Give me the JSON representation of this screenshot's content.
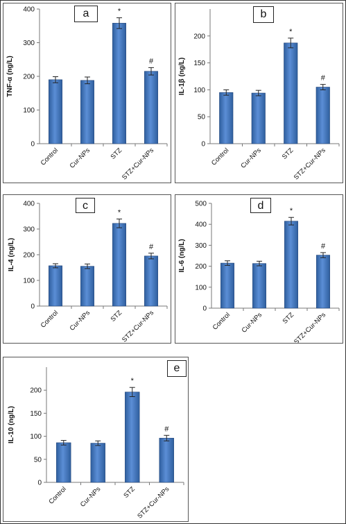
{
  "colors": {
    "bar_top": "#5b8ed6",
    "bar_bottom": "#2f5f9e",
    "bar_edge": "#23467a",
    "axis": "#777777",
    "text": "#111111"
  },
  "chart_data": [
    {
      "type": "bar",
      "panel_label": "a",
      "categories": [
        "Control",
        "Cur-NPs",
        "STZ",
        "STZ+Cur-NPs"
      ],
      "values": [
        190,
        188,
        358,
        215
      ],
      "errors": [
        9,
        10,
        16,
        11
      ],
      "annotations": [
        "",
        "",
        "*",
        "#"
      ],
      "title": "",
      "xlabel": "",
      "ylabel": "TNF-α (ng/L)",
      "ylim": [
        0,
        400
      ],
      "yticks": [
        0,
        100,
        200,
        300,
        400
      ],
      "grid": false,
      "legend": "none"
    },
    {
      "type": "bar",
      "panel_label": "b",
      "categories": [
        "Control",
        "Cur-NPs",
        "STZ",
        "STZ+Cur-NPs"
      ],
      "values": [
        95,
        94,
        187,
        105
      ],
      "errors": [
        5,
        5,
        9,
        5
      ],
      "annotations": [
        "",
        "",
        "*",
        "#"
      ],
      "title": "",
      "xlabel": "",
      "ylabel": "IL-1β (ng/L)",
      "ylim": [
        0,
        250
      ],
      "yticks": [
        0,
        50,
        100,
        150,
        200
      ],
      "grid": false,
      "legend": "none"
    },
    {
      "type": "bar",
      "panel_label": "c",
      "categories": [
        "Control",
        "Cur-NPs",
        "STZ",
        "STZ+Cur-NPs"
      ],
      "values": [
        157,
        155,
        322,
        195
      ],
      "errors": [
        8,
        9,
        17,
        11
      ],
      "annotations": [
        "",
        "",
        "*",
        "#"
      ],
      "title": "",
      "xlabel": "",
      "ylabel": "IL-4 (ng/L)",
      "ylim": [
        0,
        400
      ],
      "yticks": [
        0,
        100,
        200,
        300,
        400
      ],
      "grid": false,
      "legend": "none"
    },
    {
      "type": "bar",
      "panel_label": "d",
      "categories": [
        "Control",
        "Cur-NPs",
        "STZ",
        "STZ+Cur-NPs"
      ],
      "values": [
        215,
        213,
        415,
        253
      ],
      "errors": [
        11,
        11,
        18,
        12
      ],
      "annotations": [
        "",
        "",
        "*",
        "#"
      ],
      "title": "",
      "xlabel": "",
      "ylabel": "IL-6 (ng/L)",
      "ylim": [
        0,
        500
      ],
      "yticks": [
        0,
        100,
        200,
        300,
        400,
        500
      ],
      "grid": false,
      "legend": "none"
    },
    {
      "type": "bar",
      "panel_label": "e",
      "categories": [
        "Control",
        "Cur-NPs",
        "STZ",
        "STZ+Cur-NPs"
      ],
      "values": [
        86,
        85,
        196,
        96
      ],
      "errors": [
        5,
        5,
        10,
        6
      ],
      "annotations": [
        "",
        "",
        "*",
        "#"
      ],
      "title": "",
      "xlabel": "",
      "ylabel": "IL-10 (ng/L)",
      "ylim": [
        0,
        250
      ],
      "yticks": [
        0,
        50,
        100,
        150,
        200
      ],
      "grid": false,
      "legend": "none"
    }
  ]
}
